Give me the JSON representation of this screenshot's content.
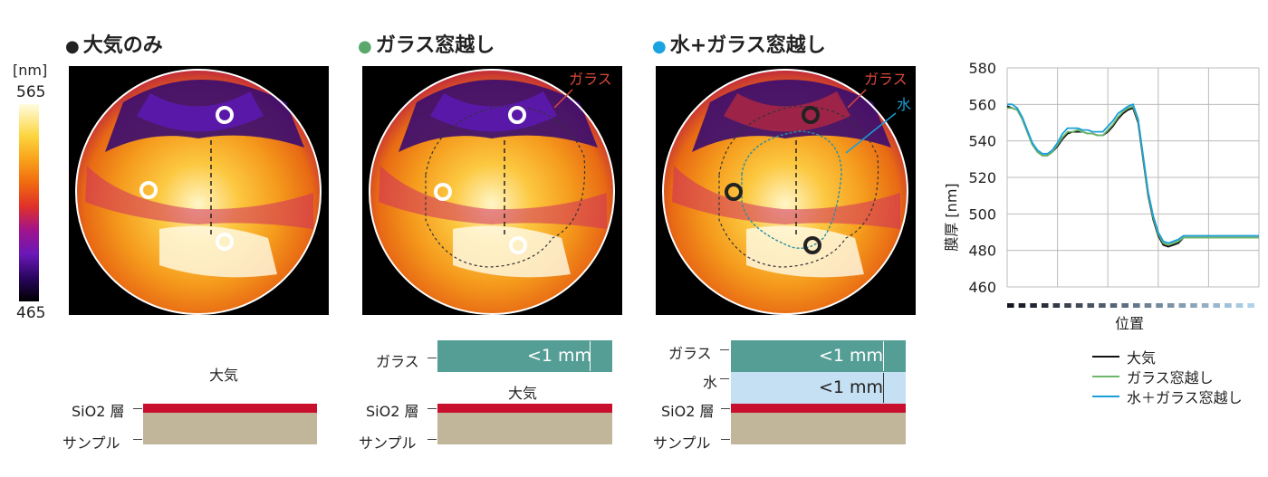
{
  "colorbar": {
    "unit": "[nm]",
    "max": "565",
    "min": "465"
  },
  "panels": [
    {
      "title": "大気のみ",
      "dot_color": "#222222",
      "medium_label": "大気",
      "layers": {
        "sio2": "SiO2 層",
        "sample": "サンプル"
      }
    },
    {
      "title": "ガラス窓越し",
      "dot_color": "#5aa86b",
      "overlay_labels": [
        "ガラス"
      ],
      "medium_label": "大気",
      "layers": {
        "glass": "ガラス",
        "glass_thickness": "<1 mm",
        "sio2": "SiO2 層",
        "sample": "サンプル"
      }
    },
    {
      "title": "水+ガラス窓越し",
      "dot_color": "#1aa3e0",
      "overlay_labels": [
        "ガラス",
        "水"
      ],
      "layers": {
        "glass": "ガラス",
        "glass_thickness": "<1 mm",
        "water": "水",
        "water_thickness": "<1 mm",
        "sio2": "SiO2 層",
        "sample": "サンプル"
      }
    }
  ],
  "colors": {
    "glass": "#559e96",
    "water": "#c5e0f3",
    "sio2": "#c8102e",
    "sample": "#c1b59a",
    "overlay_red": "#d9483b",
    "overlay_blue": "#1a9fd8"
  },
  "chart_data": {
    "type": "line",
    "title": "",
    "xlabel": "位置",
    "ylabel": "膜厚 [nm]",
    "ylim": [
      460,
      580
    ],
    "yticks": [
      460,
      480,
      500,
      520,
      540,
      560,
      580
    ],
    "x": [
      0,
      2,
      4,
      6,
      8,
      10,
      12,
      14,
      16,
      18,
      20,
      22,
      24,
      26,
      28,
      30,
      32,
      34,
      36,
      38,
      40,
      42,
      44,
      46,
      48,
      50,
      52,
      54,
      56,
      58,
      60,
      62,
      64,
      66,
      68,
      70,
      72,
      74,
      76,
      78,
      80,
      82,
      84,
      86,
      88,
      90,
      92,
      94,
      96,
      98,
      100
    ],
    "series": [
      {
        "name": "大気",
        "color": "#111111",
        "values": [
          559,
          558,
          557,
          552,
          545,
          538,
          534,
          532,
          532,
          534,
          537,
          541,
          544,
          545,
          545,
          545,
          544,
          544,
          543,
          543,
          545,
          548,
          552,
          555,
          557,
          558,
          550,
          530,
          510,
          497,
          488,
          483,
          482,
          483,
          484,
          487,
          487,
          487,
          487,
          487,
          487,
          487,
          487,
          487,
          487,
          487,
          487,
          487,
          487,
          487,
          487
        ]
      },
      {
        "name": "ガラス窓越し",
        "color": "#6cb86a",
        "values": [
          558,
          558,
          557,
          552,
          545,
          538,
          534,
          532,
          532,
          534,
          538,
          542,
          545,
          545,
          546,
          545,
          544,
          544,
          543,
          543,
          546,
          549,
          553,
          556,
          558,
          559,
          551,
          531,
          511,
          498,
          489,
          484,
          483,
          484,
          485,
          487,
          487,
          487,
          487,
          487,
          487,
          487,
          487,
          487,
          487,
          487,
          487,
          487,
          487,
          487,
          487
        ]
      },
      {
        "name": "水＋ガラス窓越し",
        "color": "#1a9fd8",
        "values": [
          560,
          560,
          558,
          553,
          546,
          539,
          535,
          533,
          533,
          535,
          539,
          544,
          547,
          547,
          547,
          546,
          546,
          545,
          545,
          545,
          548,
          551,
          555,
          557,
          559,
          560,
          552,
          532,
          512,
          499,
          490,
          485,
          484,
          485,
          486,
          488,
          488,
          488,
          488,
          488,
          488,
          488,
          488,
          488,
          488,
          488,
          488,
          488,
          488,
          488,
          488
        ]
      }
    ]
  }
}
